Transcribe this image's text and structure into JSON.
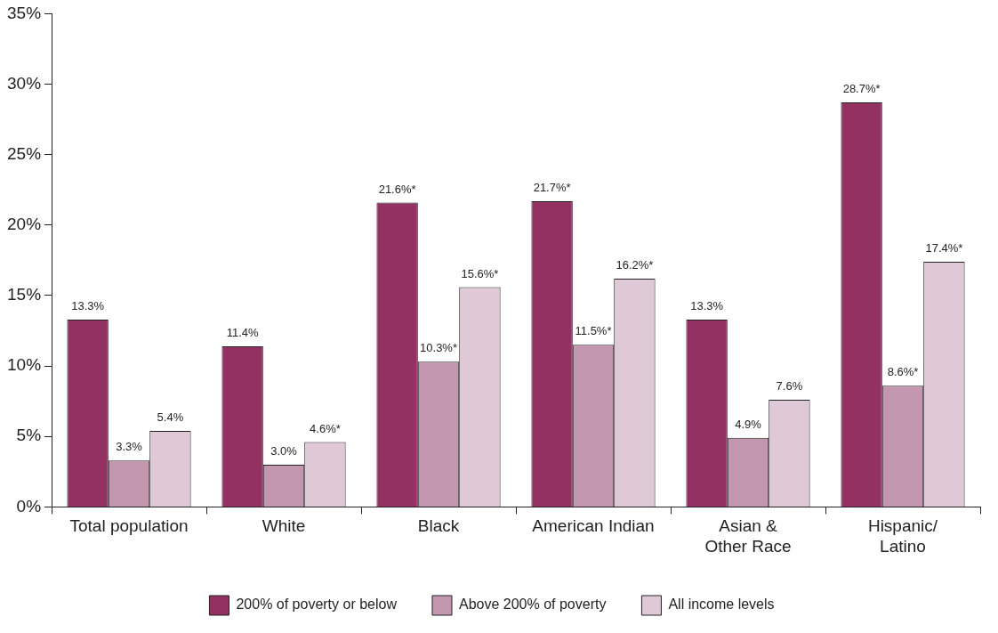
{
  "chart_data": {
    "type": "bar",
    "categories": [
      "Total population",
      "White",
      "Black",
      "American Indian",
      "Asian &\nOther Race",
      "Hispanic/\nLatino"
    ],
    "series": [
      {
        "name": "200% of poverty or below",
        "color": "#943163",
        "values": [
          13.3,
          11.4,
          21.6,
          21.7,
          13.3,
          28.7
        ],
        "value_labels": [
          "13.3%",
          "11.4%",
          "21.6%*",
          "21.7%*",
          "13.3%",
          "28.7%*"
        ]
      },
      {
        "name": "Above 200% of poverty",
        "color": "#c497b0",
        "values": [
          3.3,
          3.0,
          10.3,
          11.5,
          4.9,
          8.6
        ],
        "value_labels": [
          "3.3%",
          "3.0%",
          "10.3%*",
          "11.5%*",
          "4.9%",
          "8.6%*"
        ]
      },
      {
        "name": "All income levels",
        "color": "#e0c9d6",
        "values": [
          5.4,
          4.6,
          15.6,
          16.2,
          7.6,
          17.4
        ],
        "value_labels": [
          "5.4%",
          "4.6%*",
          "15.6%*",
          "16.2%*",
          "7.6%",
          "17.4%*"
        ]
      }
    ],
    "ylim": [
      0,
      35
    ],
    "yticks": [
      {
        "value": 0,
        "label": "0%"
      },
      {
        "value": 5,
        "label": "5%"
      },
      {
        "value": 10,
        "label": "10%"
      },
      {
        "value": 15,
        "label": "15%"
      },
      {
        "value": 20,
        "label": "20%"
      },
      {
        "value": 25,
        "label": "25%"
      },
      {
        "value": 30,
        "label": "30%"
      },
      {
        "value": 35,
        "label": "35%"
      }
    ],
    "grid": false,
    "legend": "bottom"
  }
}
